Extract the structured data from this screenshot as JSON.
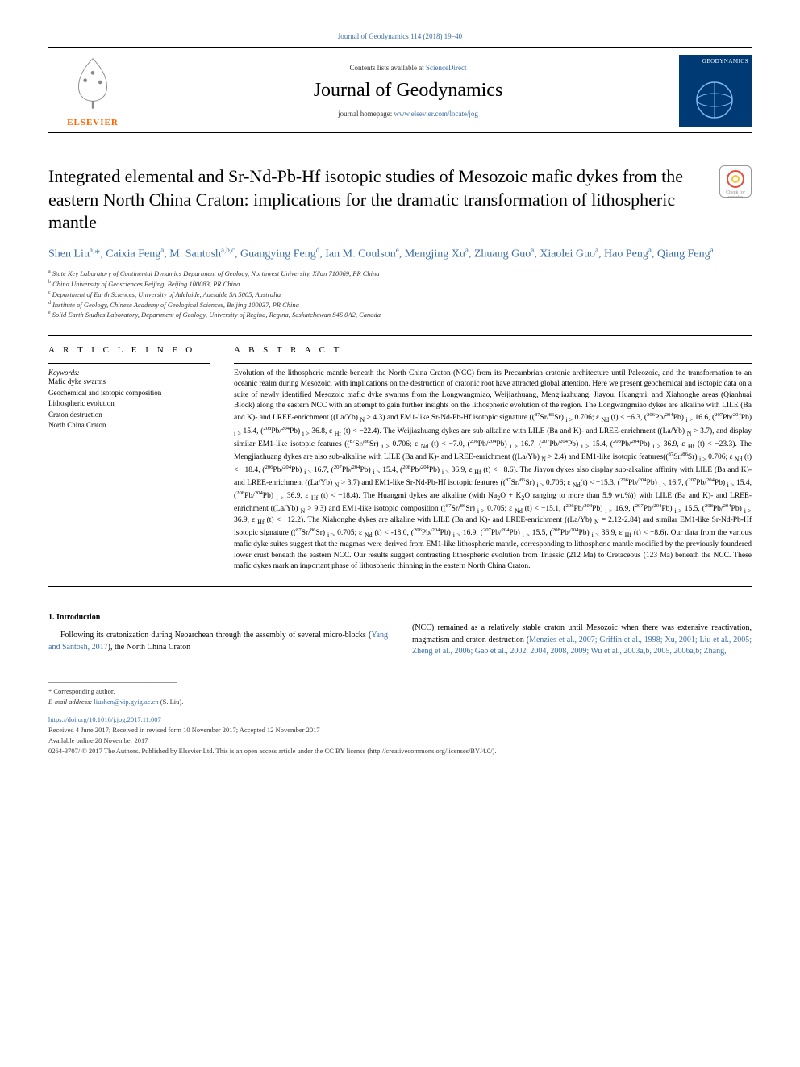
{
  "top_link": "Journal of Geodynamics 114 (2018) 19–40",
  "header": {
    "contents_prefix": "Contents lists available at ",
    "contents_link": "ScienceDirect",
    "journal_name": "Journal of Geodynamics",
    "homepage_prefix": "journal homepage: ",
    "homepage_url": "www.elsevier.com/locate/jog",
    "elsevier": "ELSEVIER",
    "cover_text": "GEODYNAMICS"
  },
  "crossmark": "Check for updates",
  "title": "Integrated elemental and Sr-Nd-Pb-Hf isotopic studies of Mesozoic mafic dykes from the eastern North China Craton: implications for the dramatic transformation of lithospheric mantle",
  "authors_html": "Shen Liu<sup>a,</sup>*, Caixia Feng<sup>a</sup>, M. Santosh<sup>a,b,c</sup>, Guangying Feng<sup>d</sup>, Ian M. Coulson<sup>e</sup>, Mengjing Xu<sup>a</sup>, Zhuang Guo<sup>a</sup>, Xiaolei Guo<sup>a</sup>, Hao Peng<sup>a</sup>, Qiang Feng<sup>a</sup>",
  "affiliations": [
    "a State Key Laboratory of Continental Dynamics Department of Geology, Northwest University, Xi'an 710069, PR China",
    "b China University of Geosciences Beijing, Beijing 100083, PR China",
    "c Department of Earth Sciences, University of Adelaide, Adelaide SA 5005, Australia",
    "d Institute of Geology, Chinese Academy of Geological Sciences, Beijing 100037, PR China",
    "e Solid Earth Studies Laboratory, Department of Geology, University of Regina, Regina, Saskatchewan S4S 0A2, Canada"
  ],
  "article_info": {
    "heading": "A R T I C L E  I N F O",
    "keywords_label": "Keywords:",
    "keywords": [
      "Mafic dyke swarms",
      "Geochemical and isotopic composition",
      "Lithospheric evolution",
      "Craton destruction",
      "North China Craton"
    ]
  },
  "abstract": {
    "heading": "A B S T R A C T",
    "text": "Evolution of the lithospheric mantle beneath the North China Craton (NCC) from its Precambrian cratonic architecture until Paleozoic, and the transformation to an oceanic realm during Mesozoic, with implications on the destruction of cratonic root have attracted global attention. Here we present geochemical and isotopic data on a suite of newly identified Mesozoic mafic dyke swarms from the Longwangmiao, Weijiazhuang, Mengjiazhuang, Jiayou, Huangmi, and Xiahonghe areas (Qianhuai Block) along the eastern NCC with an attempt to gain further insights on the lithospheric evolution of the region. The Longwangmiao dykes are alkaline with LILE (Ba and K)- and LREE-enrichment ((La/Yb) N > 4.3) and EM1-like Sr-Nd-Pb-Hf isotopic signature ((87Sr/86Sr) i > 0.706; ε Nd (t) < −6.3, (206Pb/204Pb) i > 16.6, (207Pb/204Pb) i > 15.4, (208Pb/204Pb) i > 36.8, ε Hf (t) < −22.4). The Weijiazhuang dykes are sub-alkaline with LILE (Ba and K)- and LREE-enrichment ((La/Yb) N > 3.7), and display similar EM1-like isotopic features ((87Sr/86Sr) i > 0.706; ε Nd (t) < −7.0, (206Pb/204Pb) i > 16.7, (207Pb/204Pb) i > 15.4, (208Pb/204Pb) i > 36.9, ε Hf (t) < −23.3). The Mengjiazhuang dykes are also sub-alkaline with LILE (Ba and K)- and LREE-enrichment ((La/Yb) N > 2.4) and EM1-like isotopic features((87Sr/86Sr) i > 0.706; ε Nd (t) < −18.4, (206Pb/204Pb) i > 16.7, (207Pb/204Pb) i > 15.4, (208Pb/204Pb) i > 36.9, ε Hf (t) < −8.6). The Jiayou dykes also display sub-alkaline affinity with LILE (Ba and K)- and LREE-enrichment ((La/Yb) N > 3.7) and EM1-like Sr-Nd-Pb-Hf isotopic features ((87Sr/86Sr) i > 0.706; ε Nd(t) < −15.3, (206Pb/204Pb) i > 16.7, (207Pb/204Pb) i > 15.4, (208Pb/204Pb) i > 36.9, ε Hf (t) < −18.4). The Huangmi dykes are alkaline (with Na2O + K2O ranging to more than 5.9 wt.%)) with LILE (Ba and K)- and LREE-enrichment ((La/Yb) N > 9.3) and EM1-like isotopic composition ((87Sr/86Sr) i > 0.705; ε Nd (t) < −15.1, (206Pb/204Pb) i > 16.9, (207Pb/204Pb) i > 15.5, (208Pb/204Pb) i > 36.9, ε Hf (t) < −12.2). The Xiahonghe dykes are alkaline with LILE (Ba and K)- and LREE-enrichment ((La/Yb) N = 2.12-2.84) and similar EM1-like Sr-Nd-Pb-Hf isotopic signature ((87Sr/86Sr) i > 0.705; ε Nd (t) < -18.0, (206Pb/204Pb) i > 16.9, (207Pb/204Pb) i > 15.5, (208Pb/204Pb) i > 36.9, ε Hf (t) < −8.6). Our data from the various mafic dyke suites suggest that the magmas were derived from EM1-like lithospheric mantle, corresponding to lithospheric mantle modified by the previously foundered lower crust beneath the eastern NCC. Our results suggest contrasting lithospheric evolution from Triassic (212 Ma) to Cretaceous (123 Ma) beneath the NCC. These mafic dykes mark an important phase of lithospheric thinning in the eastern North China Craton."
  },
  "introduction": {
    "heading": "1. Introduction",
    "left": "Following its cratonization during Neoarchean through the assembly of several micro-blocks (",
    "left_ref": "Yang and Santosh, 2017",
    "left_after": "), the North China Craton",
    "right": "(NCC) remained as a relatively stable craton until Mesozoic when there was extensive reactivation, magmatism and craton destruction (",
    "right_ref": "Menzies et al., 2007; Griffin et al., 1998; Xu, 2001; Liu et al., 2005; Zheng et al., 2006; Gao et al., 2002, 2004, 2008, 2009; Wu et al., 2003a,b, 2005, 2006a,b; Zhang,"
  },
  "footer": {
    "corresponding": "* Corresponding author.",
    "email_label": "E-mail address: ",
    "email": "liushen@vip.gyig.ac.cn",
    "email_suffix": " (S. Liu).",
    "doi": "https://doi.org/10.1016/j.jog.2017.11.007",
    "received": "Received 4 June 2017; Received in revised form 10 November 2017; Accepted 12 November 2017",
    "available": "Available online 28 November 2017",
    "license": "0264-3707/ © 2017 The Authors. Published by Elsevier Ltd. This is an open access article under the CC BY license (http://creativecommons.org/licenses/BY/4.0/)."
  }
}
